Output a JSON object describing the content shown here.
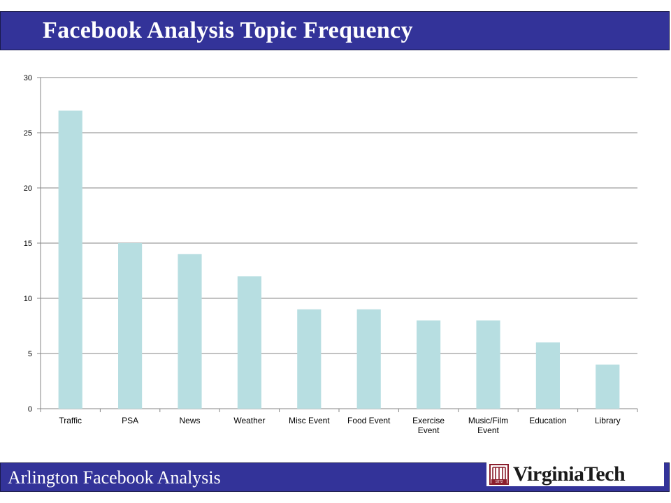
{
  "header": {
    "title": "Facebook Analysis Topic Frequency"
  },
  "footer": {
    "text": "Arlington Facebook Analysis",
    "logo_text": "VirginiaTech",
    "logo_year": "1872"
  },
  "colors": {
    "banner": "#333399",
    "bar": "#b7dee1",
    "grid": "#868686",
    "logo_mark": "#8b1e2d"
  },
  "chart_data": {
    "type": "bar",
    "categories": [
      "Traffic",
      "PSA",
      "News",
      "Weather",
      "Misc Event",
      "Food Event",
      "Exercise Event",
      "Music/Film Event",
      "Education",
      "Library"
    ],
    "category_lines": [
      [
        "Traffic"
      ],
      [
        "PSA"
      ],
      [
        "News"
      ],
      [
        "Weather"
      ],
      [
        "Misc Event"
      ],
      [
        "Food Event"
      ],
      [
        "Exercise",
        "Event"
      ],
      [
        "Music/Film",
        "Event"
      ],
      [
        "Education"
      ],
      [
        "Library"
      ]
    ],
    "values": [
      27,
      15,
      14,
      12,
      9,
      9,
      8,
      8,
      6,
      4
    ],
    "ylim": [
      0,
      30
    ],
    "yticks": [
      0,
      5,
      10,
      15,
      20,
      25,
      30
    ],
    "grid": true,
    "legend": "none",
    "title": "",
    "xlabel": "",
    "ylabel": ""
  }
}
